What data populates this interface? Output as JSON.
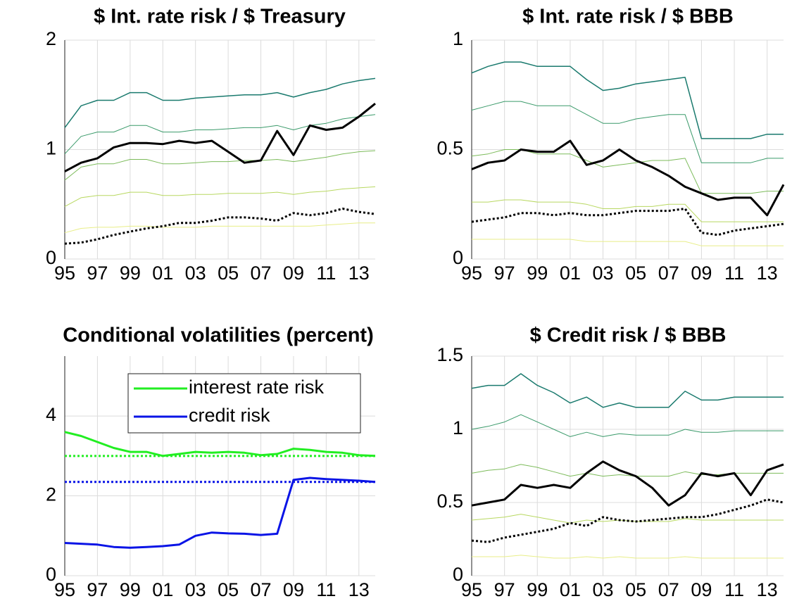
{
  "chart_data": [
    {
      "type": "line",
      "title": "$ Int. rate risk / $ Treasury",
      "x": [
        1995,
        1996,
        1997,
        1998,
        1999,
        2000,
        2001,
        2002,
        2003,
        2004,
        2005,
        2006,
        2007,
        2008,
        2009,
        2010,
        2011,
        2012,
        2013,
        2014
      ],
      "xlim": [
        1995,
        2014
      ],
      "xticks": [
        {
          "value": 1995,
          "label": "95"
        },
        {
          "value": 1997,
          "label": "97"
        },
        {
          "value": 1999,
          "label": "99"
        },
        {
          "value": 2001,
          "label": "01"
        },
        {
          "value": 2003,
          "label": "03"
        },
        {
          "value": 2005,
          "label": "05"
        },
        {
          "value": 2007,
          "label": "07"
        },
        {
          "value": 2009,
          "label": "09"
        },
        {
          "value": 2011,
          "label": "11"
        },
        {
          "value": 2013,
          "label": "13"
        }
      ],
      "ylim": [
        0,
        2
      ],
      "yticks": [
        0,
        1,
        2
      ],
      "grid": true,
      "series": [
        {
          "color": "#e8ee88",
          "style": "solid",
          "width": 1,
          "values": [
            0.24,
            0.28,
            0.29,
            0.29,
            0.3,
            0.3,
            0.29,
            0.29,
            0.29,
            0.3,
            0.3,
            0.3,
            0.3,
            0.3,
            0.3,
            0.3,
            0.31,
            0.32,
            0.33,
            0.33
          ]
        },
        {
          "color": "#b8d860",
          "style": "solid",
          "width": 1,
          "values": [
            0.48,
            0.56,
            0.58,
            0.58,
            0.61,
            0.61,
            0.58,
            0.58,
            0.59,
            0.59,
            0.6,
            0.6,
            0.6,
            0.61,
            0.59,
            0.61,
            0.62,
            0.64,
            0.65,
            0.66
          ]
        },
        {
          "color": "#7cbb5a",
          "style": "solid",
          "width": 1,
          "values": [
            0.72,
            0.84,
            0.87,
            0.87,
            0.91,
            0.91,
            0.87,
            0.87,
            0.88,
            0.89,
            0.89,
            0.9,
            0.9,
            0.91,
            0.89,
            0.91,
            0.93,
            0.96,
            0.98,
            0.99
          ]
        },
        {
          "color": "#3a9a6a",
          "style": "solid",
          "width": 1,
          "values": [
            0.96,
            1.12,
            1.16,
            1.16,
            1.22,
            1.22,
            1.16,
            1.16,
            1.18,
            1.18,
            1.19,
            1.2,
            1.2,
            1.22,
            1.18,
            1.22,
            1.24,
            1.28,
            1.3,
            1.32
          ]
        },
        {
          "color": "#1a7a6e",
          "style": "solid",
          "width": 1.5,
          "values": [
            1.2,
            1.4,
            1.45,
            1.45,
            1.52,
            1.52,
            1.45,
            1.45,
            1.47,
            1.48,
            1.49,
            1.5,
            1.5,
            1.52,
            1.48,
            1.52,
            1.55,
            1.6,
            1.63,
            1.65
          ]
        },
        {
          "color": "#000000",
          "style": "solid",
          "width": 3,
          "values": [
            0.8,
            0.88,
            0.92,
            1.02,
            1.06,
            1.06,
            1.05,
            1.08,
            1.06,
            1.08,
            0.98,
            0.88,
            0.9,
            1.17,
            0.95,
            1.22,
            1.18,
            1.2,
            1.3,
            1.42
          ]
        },
        {
          "color": "#000000",
          "style": "dotted",
          "width": 3,
          "values": [
            0.14,
            0.15,
            0.18,
            0.22,
            0.25,
            0.28,
            0.3,
            0.33,
            0.33,
            0.35,
            0.38,
            0.38,
            0.37,
            0.35,
            0.42,
            0.4,
            0.42,
            0.46,
            0.43,
            0.41
          ]
        }
      ]
    },
    {
      "type": "line",
      "title": "$ Int. rate risk / $ BBB",
      "x": [
        1995,
        1996,
        1997,
        1998,
        1999,
        2000,
        2001,
        2002,
        2003,
        2004,
        2005,
        2006,
        2007,
        2008,
        2009,
        2010,
        2011,
        2012,
        2013,
        2014
      ],
      "xlim": [
        1995,
        2014
      ],
      "xticks": [
        {
          "value": 1995,
          "label": "95"
        },
        {
          "value": 1997,
          "label": "97"
        },
        {
          "value": 1999,
          "label": "99"
        },
        {
          "value": 2001,
          "label": "01"
        },
        {
          "value": 2003,
          "label": "03"
        },
        {
          "value": 2005,
          "label": "05"
        },
        {
          "value": 2007,
          "label": "07"
        },
        {
          "value": 2009,
          "label": "09"
        },
        {
          "value": 2011,
          "label": "11"
        },
        {
          "value": 2013,
          "label": "13"
        }
      ],
      "ylim": [
        0,
        1
      ],
      "yticks": [
        0,
        0.5,
        1
      ],
      "grid": true,
      "series": [
        {
          "color": "#e8ee88",
          "style": "solid",
          "width": 1,
          "values": [
            0.09,
            0.09,
            0.09,
            0.09,
            0.09,
            0.09,
            0.09,
            0.08,
            0.08,
            0.08,
            0.08,
            0.08,
            0.08,
            0.08,
            0.06,
            0.06,
            0.06,
            0.06,
            0.06,
            0.06
          ]
        },
        {
          "color": "#b8d860",
          "style": "solid",
          "width": 1,
          "values": [
            0.26,
            0.26,
            0.27,
            0.27,
            0.26,
            0.26,
            0.26,
            0.25,
            0.23,
            0.23,
            0.24,
            0.24,
            0.25,
            0.25,
            0.17,
            0.17,
            0.17,
            0.17,
            0.17,
            0.17
          ]
        },
        {
          "color": "#7cbb5a",
          "style": "solid",
          "width": 1,
          "values": [
            0.47,
            0.48,
            0.5,
            0.5,
            0.48,
            0.48,
            0.48,
            0.45,
            0.42,
            0.43,
            0.44,
            0.45,
            0.45,
            0.46,
            0.3,
            0.3,
            0.3,
            0.3,
            0.31,
            0.31
          ]
        },
        {
          "color": "#3a9a6a",
          "style": "solid",
          "width": 1,
          "values": [
            0.68,
            0.7,
            0.72,
            0.72,
            0.7,
            0.7,
            0.7,
            0.66,
            0.62,
            0.62,
            0.64,
            0.65,
            0.66,
            0.66,
            0.44,
            0.44,
            0.44,
            0.44,
            0.46,
            0.46
          ]
        },
        {
          "color": "#1a7a6e",
          "style": "solid",
          "width": 1.5,
          "values": [
            0.85,
            0.88,
            0.9,
            0.9,
            0.88,
            0.88,
            0.88,
            0.82,
            0.77,
            0.78,
            0.8,
            0.81,
            0.82,
            0.83,
            0.55,
            0.55,
            0.55,
            0.55,
            0.57,
            0.57
          ]
        },
        {
          "color": "#000000",
          "style": "solid",
          "width": 3,
          "values": [
            0.41,
            0.44,
            0.45,
            0.5,
            0.49,
            0.49,
            0.54,
            0.43,
            0.45,
            0.5,
            0.45,
            0.42,
            0.38,
            0.33,
            0.3,
            0.27,
            0.28,
            0.28,
            0.2,
            0.34
          ]
        },
        {
          "color": "#000000",
          "style": "dotted",
          "width": 3,
          "values": [
            0.17,
            0.18,
            0.19,
            0.21,
            0.21,
            0.2,
            0.21,
            0.2,
            0.2,
            0.21,
            0.22,
            0.22,
            0.22,
            0.23,
            0.12,
            0.11,
            0.13,
            0.14,
            0.15,
            0.16
          ]
        }
      ]
    },
    {
      "type": "line",
      "title": "Conditional volatilities (percent)",
      "x": [
        1995,
        1996,
        1997,
        1998,
        1999,
        2000,
        2001,
        2002,
        2003,
        2004,
        2005,
        2006,
        2007,
        2008,
        2009,
        2010,
        2011,
        2012,
        2013,
        2014
      ],
      "xlim": [
        1995,
        2014
      ],
      "xticks": [
        {
          "value": 1995,
          "label": "95"
        },
        {
          "value": 1997,
          "label": "97"
        },
        {
          "value": 1999,
          "label": "99"
        },
        {
          "value": 2001,
          "label": "01"
        },
        {
          "value": 2003,
          "label": "03"
        },
        {
          "value": 2005,
          "label": "05"
        },
        {
          "value": 2007,
          "label": "07"
        },
        {
          "value": 2009,
          "label": "09"
        },
        {
          "value": 2011,
          "label": "11"
        },
        {
          "value": 2013,
          "label": "13"
        }
      ],
      "ylim": [
        0,
        5.5
      ],
      "yticks": [
        0,
        2,
        4
      ],
      "grid": true,
      "legend": "upper-right",
      "series": [
        {
          "name": "interest rate risk",
          "color": "#22ee22",
          "style": "solid",
          "width": 3,
          "values": [
            3.6,
            3.5,
            3.35,
            3.2,
            3.1,
            3.1,
            3.0,
            3.05,
            3.1,
            3.08,
            3.1,
            3.08,
            3.02,
            3.05,
            3.18,
            3.15,
            3.1,
            3.08,
            3.02,
            3.0
          ]
        },
        {
          "name": "credit risk",
          "color": "#0a14e6",
          "style": "solid",
          "width": 3,
          "values": [
            0.82,
            0.8,
            0.78,
            0.72,
            0.7,
            0.72,
            0.74,
            0.78,
            1.0,
            1.08,
            1.06,
            1.05,
            1.02,
            1.05,
            2.4,
            2.45,
            2.42,
            2.4,
            2.38,
            2.35
          ]
        }
      ],
      "hlines": [
        {
          "value": 3.0,
          "color": "#22ee22",
          "style": "dotted"
        },
        {
          "value": 2.35,
          "color": "#0a14e6",
          "style": "dotted"
        }
      ]
    },
    {
      "type": "line",
      "title": "$ Credit risk / $ BBB",
      "x": [
        1995,
        1996,
        1997,
        1998,
        1999,
        2000,
        2001,
        2002,
        2003,
        2004,
        2005,
        2006,
        2007,
        2008,
        2009,
        2010,
        2011,
        2012,
        2013,
        2014
      ],
      "xlim": [
        1995,
        2014
      ],
      "xticks": [
        {
          "value": 1995,
          "label": "95"
        },
        {
          "value": 1997,
          "label": "97"
        },
        {
          "value": 1999,
          "label": "99"
        },
        {
          "value": 2001,
          "label": "01"
        },
        {
          "value": 2003,
          "label": "03"
        },
        {
          "value": 2005,
          "label": "05"
        },
        {
          "value": 2007,
          "label": "07"
        },
        {
          "value": 2009,
          "label": "09"
        },
        {
          "value": 2011,
          "label": "11"
        },
        {
          "value": 2013,
          "label": "13"
        }
      ],
      "ylim": [
        0,
        1.5
      ],
      "yticks": [
        0,
        0.5,
        1,
        1.5
      ],
      "grid": true,
      "series": [
        {
          "color": "#e8ee88",
          "style": "solid",
          "width": 1,
          "values": [
            0.13,
            0.13,
            0.13,
            0.14,
            0.13,
            0.12,
            0.12,
            0.13,
            0.12,
            0.13,
            0.12,
            0.12,
            0.12,
            0.13,
            0.12,
            0.12,
            0.12,
            0.12,
            0.12,
            0.12
          ]
        },
        {
          "color": "#b8d860",
          "style": "solid",
          "width": 1,
          "values": [
            0.38,
            0.39,
            0.4,
            0.42,
            0.4,
            0.38,
            0.36,
            0.38,
            0.37,
            0.38,
            0.37,
            0.37,
            0.37,
            0.39,
            0.38,
            0.38,
            0.38,
            0.38,
            0.38,
            0.38
          ]
        },
        {
          "color": "#7cbb5a",
          "style": "solid",
          "width": 1,
          "values": [
            0.7,
            0.72,
            0.73,
            0.76,
            0.74,
            0.71,
            0.68,
            0.7,
            0.68,
            0.69,
            0.68,
            0.68,
            0.68,
            0.71,
            0.69,
            0.69,
            0.7,
            0.7,
            0.7,
            0.7
          ]
        },
        {
          "color": "#3a9a6a",
          "style": "solid",
          "width": 1,
          "values": [
            1.0,
            1.02,
            1.05,
            1.1,
            1.05,
            1.0,
            0.95,
            0.98,
            0.95,
            0.97,
            0.96,
            0.96,
            0.96,
            1.0,
            0.98,
            0.98,
            0.99,
            0.99,
            0.99,
            0.99
          ]
        },
        {
          "color": "#1a7a6e",
          "style": "solid",
          "width": 1.5,
          "values": [
            1.28,
            1.3,
            1.3,
            1.38,
            1.3,
            1.25,
            1.18,
            1.22,
            1.15,
            1.18,
            1.15,
            1.15,
            1.15,
            1.26,
            1.2,
            1.2,
            1.22,
            1.22,
            1.22,
            1.22
          ]
        },
        {
          "color": "#000000",
          "style": "solid",
          "width": 3,
          "values": [
            0.48,
            0.5,
            0.52,
            0.62,
            0.6,
            0.62,
            0.6,
            0.7,
            0.78,
            0.72,
            0.68,
            0.6,
            0.48,
            0.55,
            0.7,
            0.68,
            0.7,
            0.55,
            0.72,
            0.76
          ]
        },
        {
          "color": "#000000",
          "style": "dotted",
          "width": 3,
          "values": [
            0.24,
            0.23,
            0.26,
            0.28,
            0.3,
            0.32,
            0.36,
            0.34,
            0.4,
            0.38,
            0.37,
            0.38,
            0.39,
            0.4,
            0.4,
            0.42,
            0.45,
            0.48,
            0.52,
            0.5
          ]
        }
      ]
    }
  ]
}
